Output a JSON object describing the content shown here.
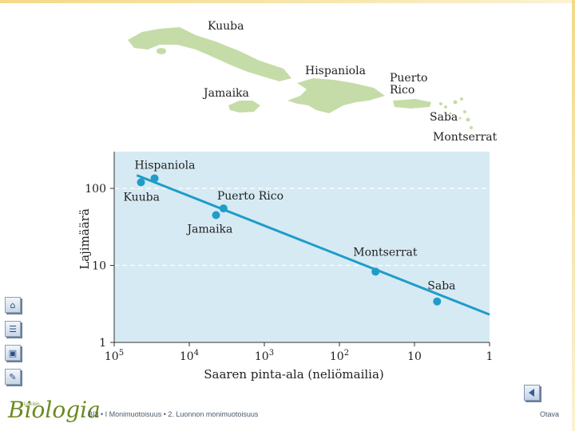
{
  "map": {
    "labels": [
      "Kuuba",
      "Hispaniola",
      "Jamaika",
      "Puerto\nRico",
      "Saba",
      "Montserrat"
    ],
    "land_color": "#c5dca8"
  },
  "chart_data": {
    "type": "scatter",
    "xlabel": "Saaren pinta-ala (neliömailia)",
    "ylabel": "Lajimäärä",
    "x_scale": "log-reversed",
    "xlim": [
      100000,
      1
    ],
    "ylim": [
      1,
      300
    ],
    "x_ticks": [
      {
        "value": 100000,
        "base": "10",
        "exp": "5"
      },
      {
        "value": 10000,
        "base": "10",
        "exp": "4"
      },
      {
        "value": 1000,
        "base": "10",
        "exp": "3"
      },
      {
        "value": 100,
        "base": "10",
        "exp": "2"
      },
      {
        "value": 10,
        "base": "10",
        "exp": ""
      },
      {
        "value": 1,
        "base": "1",
        "exp": ""
      }
    ],
    "y_ticks": [
      {
        "value": 100,
        "label": "100"
      },
      {
        "value": 10,
        "label": "10"
      },
      {
        "value": 1,
        "label": "1"
      }
    ],
    "points": [
      {
        "name": "Kuuba",
        "x": 44000,
        "y": 120
      },
      {
        "name": "Hispaniola",
        "x": 29000,
        "y": 135
      },
      {
        "name": "Jamaika",
        "x": 4400,
        "y": 45
      },
      {
        "name": "Puerto Rico",
        "x": 3500,
        "y": 55
      },
      {
        "name": "Montserrat",
        "x": 33,
        "y": 8.3
      },
      {
        "name": "Saba",
        "x": 5,
        "y": 3.4
      }
    ],
    "trendline": {
      "x": [
        50000,
        1
      ],
      "y": [
        148,
        2.3
      ]
    },
    "grid": "horizontal dashed",
    "background": "#d6eaf3",
    "point_color": "#1f9cc9",
    "line_color": "#1f9cc9"
  },
  "nav": {
    "icons": [
      "home-icon",
      "list-icon",
      "image-icon",
      "edit-icon"
    ],
    "back_icon": "back-arrow-icon"
  },
  "footer": {
    "logo_small": "Lukion",
    "logo": "Biologia",
    "breadcrumb": "BI3 • I Monimuotoisuus • 2. Luonnon monimuotoisuus",
    "publisher": "Otava"
  }
}
